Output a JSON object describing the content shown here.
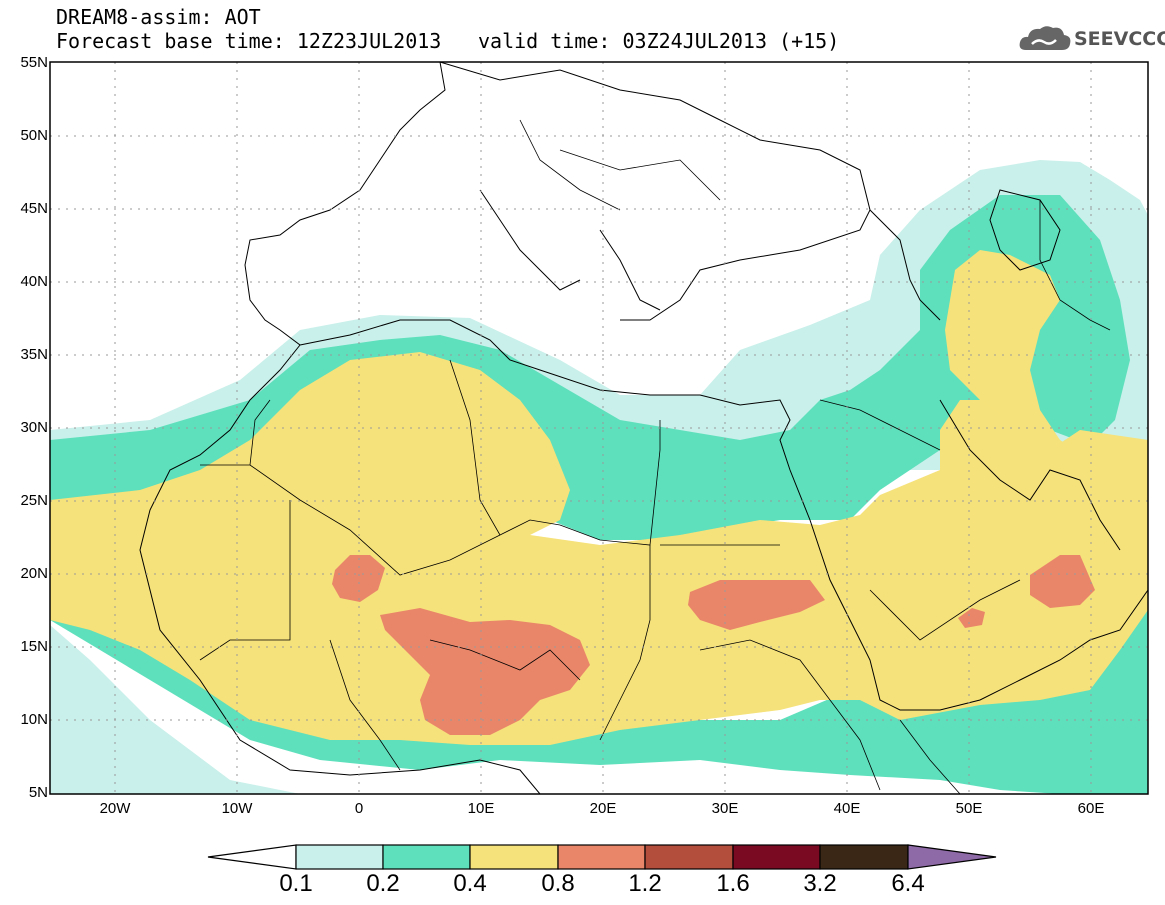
{
  "header": {
    "title_line1": "DREAM8-assim: AOT",
    "title_line2": "Forecast base time: 12Z23JUL2013",
    "valid_time": "valid time: 03Z24JUL2013 (+15)"
  },
  "logo": {
    "text": "SEEVCCC",
    "icon": "cloud-icon"
  },
  "map": {
    "lat_range": [
      5,
      55
    ],
    "lon_range": [
      -25,
      65
    ],
    "lat_labels": [
      "55N",
      "50N",
      "45N",
      "40N",
      "35N",
      "30N",
      "25N",
      "20N",
      "15N",
      "10N",
      "5N"
    ],
    "lon_labels": [
      "20W",
      "10W",
      "0",
      "10E",
      "20E",
      "30E",
      "40E",
      "50E",
      "60E"
    ],
    "grid": "dotted"
  },
  "colorbar": {
    "labels": [
      "0.1",
      "0.2",
      "0.4",
      "0.8",
      "1.2",
      "1.6",
      "3.2",
      "6.4"
    ],
    "colors": [
      "#ffffff",
      "#c9f0ea",
      "#5ee0bc",
      "#f6e27a",
      "#e9866a",
      "#b34e3c",
      "#7a0a22",
      "#3a2716",
      "#8e6aa6"
    ]
  }
}
